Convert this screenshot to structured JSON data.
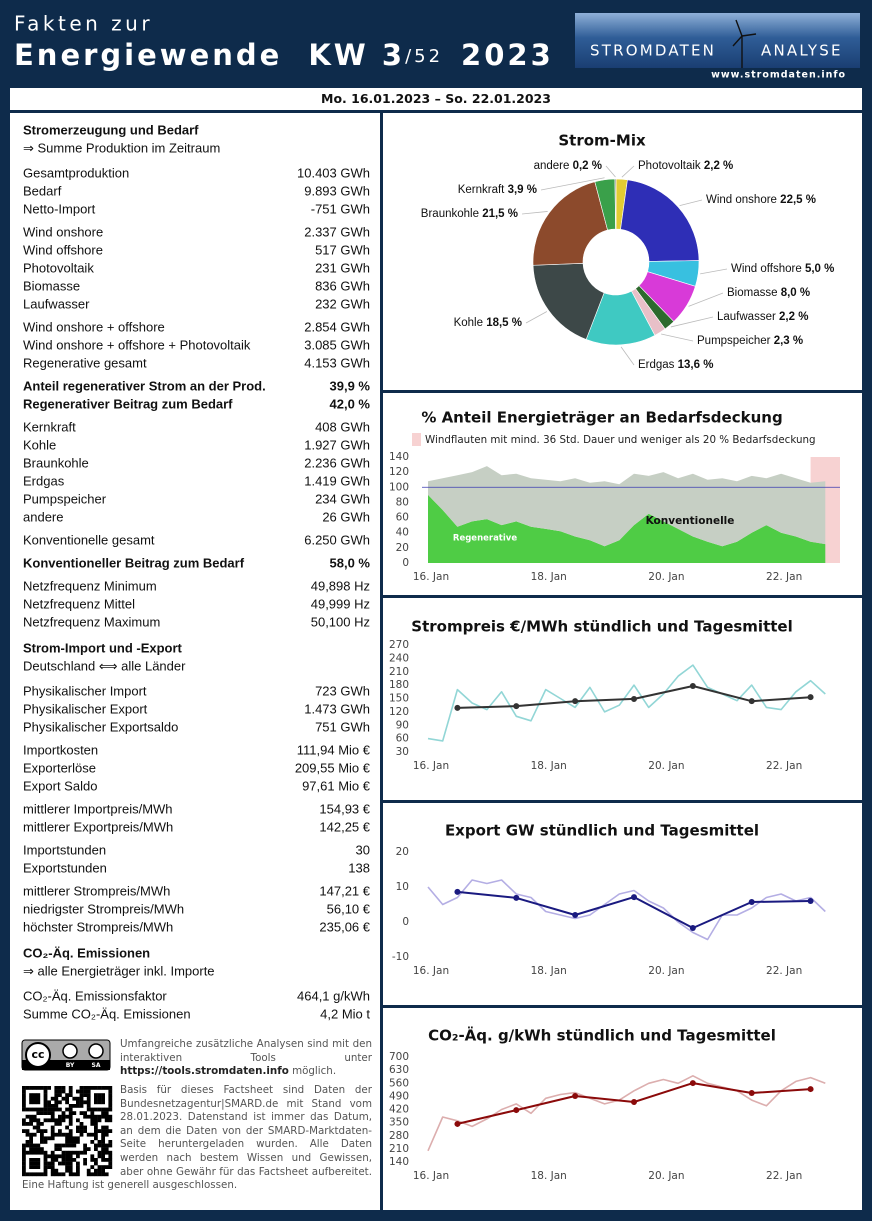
{
  "header": {
    "title_line1": "Fakten zur",
    "title_line2": "Energiewende",
    "week": "KW 3",
    "week_total": "/52",
    "year": "2023",
    "logo_left": "STROMDATEN",
    "logo_right": "ANALYSE",
    "url": "www.stromdaten.info"
  },
  "date_range": "Mo. 16.01.2023 – So. 22.01.2023",
  "left_panel": {
    "sections": [
      {
        "title": "Stromerzeugung und Bedarf",
        "subtitle": "⇒ Summe Produktion im Zeitraum",
        "groups": [
          {
            "rows": [
              {
                "label": "Gesamtproduktion",
                "value": "10.403 GWh"
              },
              {
                "label": "Bedarf",
                "value": "9.893 GWh"
              },
              {
                "label": "Netto-Import",
                "value": "-751 GWh",
                "value_color": "#e02424"
              }
            ]
          },
          {
            "rows": [
              {
                "label": "Wind onshore",
                "value": "2.337 GWh"
              },
              {
                "label": "Wind offshore",
                "value": "517 GWh"
              },
              {
                "label": "Photovoltaik",
                "value": "231 GWh"
              },
              {
                "label": "Biomasse",
                "value": "836 GWh"
              },
              {
                "label": "Laufwasser",
                "value": "232 GWh"
              }
            ]
          },
          {
            "rows": [
              {
                "label": "Wind onshore + offshore",
                "value": "2.854 GWh"
              },
              {
                "label": "Wind onshore + offshore + Photovoltaik",
                "value": "3.085 GWh"
              },
              {
                "label": "Regenerative gesamt",
                "value": "4.153 GWh"
              }
            ]
          },
          {
            "color": "#1c6a6a",
            "rows": [
              {
                "label": "Anteil regenerativer Strom an der Prod.",
                "value": "39,9 %"
              },
              {
                "label": "Regenerativer Beitrag zum Bedarf",
                "value": "42,0 %"
              }
            ]
          },
          {
            "rows": [
              {
                "label": "Kernkraft",
                "value": "408 GWh"
              },
              {
                "label": "Kohle",
                "value": "1.927 GWh"
              },
              {
                "label": "Braunkohle",
                "value": "2.236 GWh"
              },
              {
                "label": "Erdgas",
                "value": "1.419 GWh"
              },
              {
                "label": "Pumpspeicher",
                "value": "234 GWh"
              },
              {
                "label": "andere",
                "value": "26 GWh"
              }
            ]
          },
          {
            "rows": [
              {
                "label": "Konventionelle gesamt",
                "value": "6.250 GWh"
              }
            ]
          },
          {
            "color": "#1c6a6a",
            "rows": [
              {
                "label": "Konventioneller Beitrag zum Bedarf",
                "value": "58,0 %"
              }
            ]
          },
          {
            "rows": [
              {
                "label": "Netzfrequenz Minimum",
                "value": "49,898 Hz"
              },
              {
                "label": "Netzfrequenz Mittel",
                "value": "49,999 Hz"
              },
              {
                "label": "Netzfrequenz Maximum",
                "value": "50,100 Hz"
              }
            ]
          }
        ]
      },
      {
        "title": "Strom-Import und -Export",
        "subtitle": "Deutschland ⟺ alle Länder",
        "groups": [
          {
            "rows": [
              {
                "label": "Physikalischer Import",
                "value": "723 GWh"
              },
              {
                "label": "Physikalischer Export",
                "value": "1.473 GWh"
              },
              {
                "label": "Physikalischer Exportsaldo",
                "value": "751 GWh"
              }
            ]
          },
          {
            "rows": [
              {
                "label": "Importkosten",
                "value": "111,94 Mio €"
              },
              {
                "label": "Exporterlöse",
                "value": "209,55 Mio €"
              },
              {
                "label": "Export Saldo",
                "value": "97,61 Mio €"
              }
            ]
          },
          {
            "rows": [
              {
                "label": "mittlerer Importpreis/MWh",
                "value": "154,93 €"
              },
              {
                "label": "mittlerer Exportpreis/MWh",
                "value": "142,25 €"
              }
            ]
          },
          {
            "rows": [
              {
                "label": "Importstunden",
                "value": "30"
              },
              {
                "label": "Exportstunden",
                "value": "138"
              }
            ]
          },
          {
            "rows": [
              {
                "label": "mittlerer Strompreis/MWh",
                "value": "147,21 €"
              },
              {
                "label": "niedrigster Strompreis/MWh",
                "value": "56,10 €"
              },
              {
                "label": "höchster Strompreis/MWh",
                "value": "235,06 €"
              }
            ]
          }
        ]
      },
      {
        "title": "CO₂-Äq. Emissionen",
        "subtitle": "⇒ alle Energieträger inkl. Importe",
        "groups": [
          {
            "rows": [
              {
                "label": "CO₂-Äq. Emissionsfaktor",
                "value": "464,1 g/kWh"
              },
              {
                "label": "Summe CO₂-Äq. Emissionen",
                "value": "4,2 Mio t"
              }
            ]
          }
        ]
      }
    ]
  },
  "footer": {
    "license_badge": [
      "cc",
      "BY",
      "SA"
    ],
    "tools_text": "Umfangreiche zusätzliche Analysen sind mit den interaktiven Tools unter",
    "tools_url": "https://tools.stromdaten.info",
    "tools_end": "möglich.",
    "disclaimer": "Basis für dieses Factsheet sind Daten der Bundesnetzagentur|SMARD.de mit Stand vom 28.01.2023. Datenstand ist immer das Datum, an dem die Daten von der SMARD-Marktdaten-Seite heruntergeladen wurden. Alle Daten werden nach bestem Wissen und Gewissen, aber ohne Gewähr für das Factsheet aufbereitet. Eine Haftung ist generell ausgeschlossen."
  },
  "chart_data": [
    {
      "type": "pie",
      "title": "Strom-Mix",
      "categories": [
        "Photovoltaik",
        "Wind onshore",
        "Wind offshore",
        "Biomasse",
        "Laufwasser",
        "Pumpspeicher",
        "Erdgas",
        "Kohle",
        "Braunkohle",
        "Kernkraft",
        "andere"
      ],
      "values": [
        2.2,
        22.5,
        5.0,
        8.0,
        2.2,
        2.3,
        13.6,
        18.5,
        21.5,
        3.9,
        0.2
      ],
      "value_labels": [
        "2,2 %",
        "22,5 %",
        "5,0 %",
        "8,0 %",
        "2,2 %",
        "2,3 %",
        "13,6 %",
        "18,5 %",
        "21,5 %",
        "3,9 %",
        "0,2 %"
      ],
      "colors": [
        "#e2cc33",
        "#2e2eb6",
        "#38c0e0",
        "#d83ad8",
        "#2d6a2d",
        "#e8c0c8",
        "#3fc9c2",
        "#3d4848",
        "#8c4a2c",
        "#3aa04a",
        "#5a5a5a"
      ]
    },
    {
      "type": "area",
      "title": "% Anteil Energieträger an Bedarfsdeckung",
      "categories": [
        "16. Jan",
        null,
        null,
        null,
        null,
        null,
        null,
        null,
        "18. Jan",
        null,
        null,
        null,
        null,
        null,
        null,
        null,
        "20. Jan",
        null,
        null,
        null,
        null,
        null,
        null,
        null,
        "22. Jan",
        null,
        null,
        null
      ],
      "series": [
        {
          "name": "Regenerative",
          "color": "#4fcc45",
          "values": [
            90,
            70,
            48,
            55,
            58,
            50,
            55,
            48,
            45,
            42,
            35,
            30,
            22,
            30,
            50,
            65,
            55,
            45,
            35,
            28,
            22,
            28,
            40,
            50,
            40,
            35,
            28,
            25
          ]
        },
        {
          "name": "Konventionelle",
          "color": "#c6cfc4",
          "values": [
            18,
            42,
            68,
            65,
            70,
            66,
            63,
            64,
            65,
            66,
            77,
            76,
            86,
            74,
            68,
            50,
            65,
            67,
            83,
            82,
            90,
            80,
            75,
            62,
            78,
            77,
            78,
            83
          ]
        }
      ],
      "reference_line": 100,
      "reference_color": "#3a3ab0",
      "highlight": {
        "label": "Windflauten mit mind. 36 Std. Dauer und weniger als 20 % Bedarfsdeckung",
        "color": "#f7d2d2",
        "from": 26,
        "to": 28
      },
      "ylim": [
        0,
        140
      ],
      "yticks": [
        0,
        20,
        40,
        60,
        80,
        100,
        120,
        140
      ]
    },
    {
      "type": "line",
      "title": "Strompreis €/MWh stündlich und Tagesmittel",
      "categories": [
        "16. Jan",
        null,
        null,
        null,
        null,
        null,
        null,
        null,
        "18. Jan",
        null,
        null,
        null,
        null,
        null,
        null,
        null,
        "20. Jan",
        null,
        null,
        null,
        null,
        null,
        null,
        null,
        "22. Jan",
        null,
        null,
        null
      ],
      "series": [
        {
          "color": "#92d6d6",
          "values": [
            60,
            55,
            170,
            140,
            125,
            165,
            110,
            100,
            170,
            150,
            130,
            175,
            120,
            135,
            180,
            130,
            160,
            200,
            225,
            175,
            160,
            145,
            180,
            130,
            125,
            165,
            190,
            160
          ]
        },
        {
          "color": "#333333",
          "x": [
            2,
            6,
            10,
            14,
            18,
            22,
            26
          ],
          "values": [
            129,
            133,
            144,
            149,
            178,
            144,
            153
          ]
        }
      ],
      "ylim": [
        30,
        270
      ],
      "yticks": [
        30,
        60,
        90,
        120,
        150,
        180,
        210,
        240,
        270
      ]
    },
    {
      "type": "line",
      "title": "Export GW stündlich und Tagesmittel",
      "categories": [
        "16. Jan",
        null,
        null,
        null,
        null,
        null,
        null,
        null,
        "18. Jan",
        null,
        null,
        null,
        null,
        null,
        null,
        null,
        "20. Jan",
        null,
        null,
        null,
        null,
        null,
        null,
        null,
        "22. Jan",
        null,
        null,
        null
      ],
      "series": [
        {
          "color": "#b4aee4",
          "values": [
            10,
            5,
            7,
            12,
            11,
            12,
            8,
            7,
            3,
            2,
            1,
            2,
            5,
            8,
            9,
            6,
            4,
            0,
            -3,
            -5,
            2,
            2,
            4,
            7,
            8,
            6,
            7,
            3
          ]
        },
        {
          "color": "#1a1a80",
          "x": [
            2,
            6,
            10,
            14,
            18,
            22,
            26
          ],
          "values": [
            8.6,
            6.9,
            2.0,
            7.1,
            -1.7,
            5.7,
            6.0
          ]
        }
      ],
      "ylim": [
        -10,
        20
      ],
      "yticks": [
        -10,
        0,
        10,
        20
      ]
    },
    {
      "type": "line",
      "title": "CO₂-Äq. g/kWh stündlich und Tagesmittel",
      "categories": [
        "16. Jan",
        null,
        null,
        null,
        null,
        null,
        null,
        null,
        "18. Jan",
        null,
        null,
        null,
        null,
        null,
        null,
        null,
        "20. Jan",
        null,
        null,
        null,
        null,
        null,
        null,
        null,
        "22. Jan",
        null,
        null,
        null
      ],
      "series": [
        {
          "color": "#dcaeae",
          "values": [
            200,
            380,
            360,
            330,
            370,
            420,
            450,
            400,
            480,
            500,
            510,
            480,
            450,
            470,
            520,
            560,
            580,
            560,
            600,
            560,
            540,
            520,
            470,
            440,
            520,
            570,
            590,
            560
          ]
        },
        {
          "color": "#8b0a0a",
          "x": [
            2,
            6,
            10,
            14,
            18,
            22,
            26
          ],
          "values": [
            343,
            417,
            492,
            460,
            561,
            508,
            529
          ]
        }
      ],
      "ylim": [
        140,
        700
      ],
      "yticks": [
        140,
        210,
        280,
        350,
        420,
        490,
        560,
        630,
        700
      ]
    }
  ]
}
